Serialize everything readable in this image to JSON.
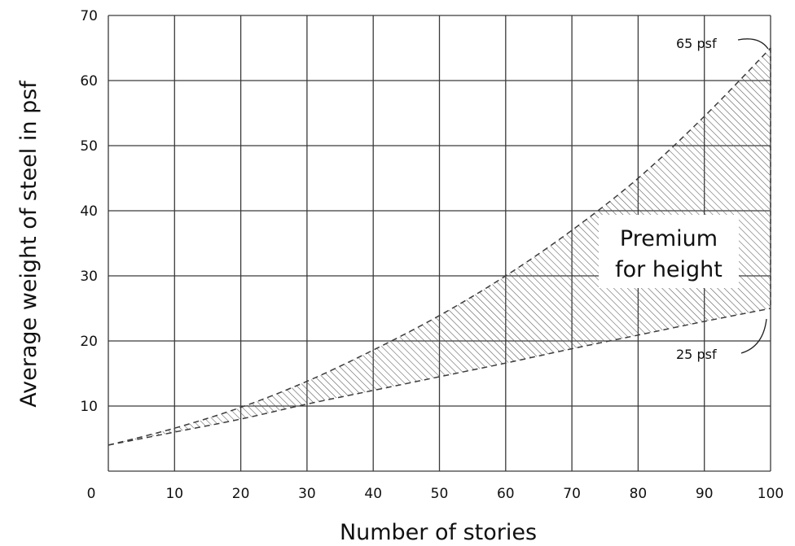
{
  "chart_data": {
    "type": "area",
    "xlabel": "Number of stories",
    "ylabel": "Average weight of steel in psf",
    "xlim": [
      0,
      100
    ],
    "ylim": [
      0,
      70
    ],
    "x_ticks": [
      0,
      10,
      20,
      30,
      40,
      50,
      60,
      70,
      80,
      90,
      100
    ],
    "y_ticks": [
      10,
      20,
      30,
      40,
      50,
      60,
      70
    ],
    "grid": true,
    "series": [
      {
        "name": "65 psf",
        "line_style": "dashed",
        "x": [
          0,
          10,
          20,
          30,
          40,
          50,
          60,
          70,
          80,
          90,
          100
        ],
        "y": [
          4,
          6.6,
          9.8,
          13.8,
          18.6,
          23.9,
          30,
          37,
          45,
          54.5,
          65
        ]
      },
      {
        "name": "25 psf",
        "line_style": "dashed",
        "x": [
          0,
          10,
          20,
          30,
          40,
          50,
          60,
          70,
          80,
          90,
          100
        ],
        "y": [
          4,
          6,
          8,
          10.3,
          12.4,
          14.5,
          16.6,
          18.8,
          20.9,
          23,
          25
        ]
      }
    ],
    "shaded_region": {
      "between": [
        "65 psf",
        "25 psf"
      ],
      "pattern": "diagonal hatch",
      "label_lines": [
        "Premium",
        "for height"
      ]
    },
    "annotations": [
      {
        "text": "65 psf",
        "points_to": {
          "x": 100,
          "y": 65
        }
      },
      {
        "text": "25 psf",
        "points_to": {
          "x": 100,
          "y": 25
        }
      }
    ],
    "x_origin_label": "0"
  },
  "colors": {
    "grid": "#3a3a3a",
    "line": "#3c3c3c",
    "hatch": "#555555",
    "text": "#111111",
    "background": "#ffffff"
  }
}
